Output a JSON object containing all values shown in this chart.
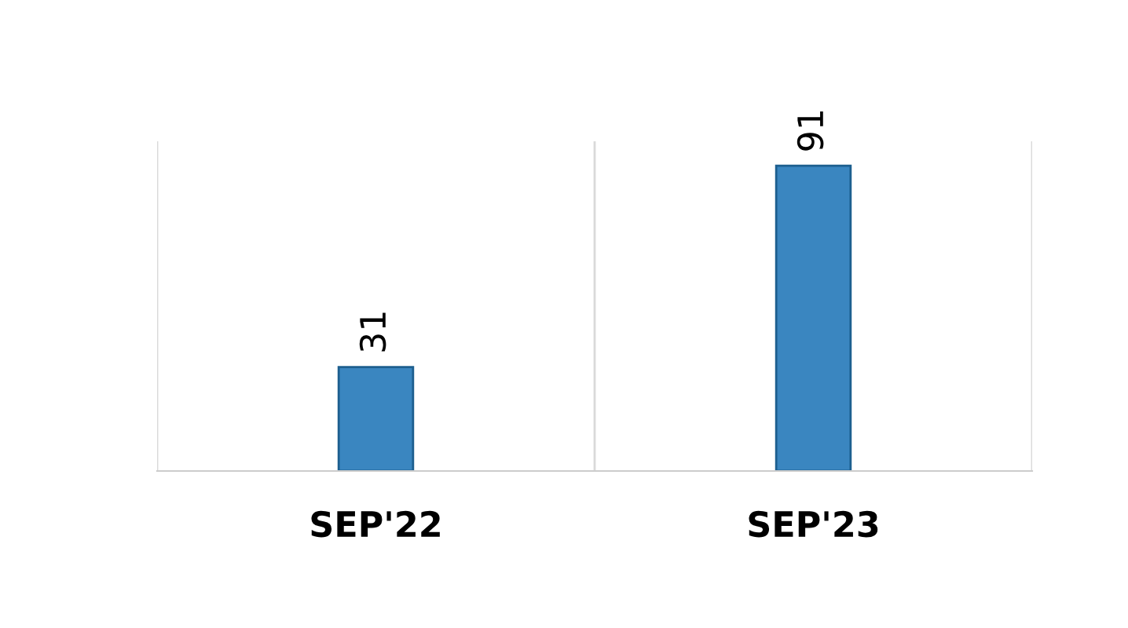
{
  "chart_data": {
    "type": "bar",
    "categories": [
      "SEP'22",
      "SEP'23"
    ],
    "values": [
      31,
      91
    ],
    "color": "#3a86c0",
    "data_labels": true,
    "grid": "x",
    "tick_labels": "x"
  }
}
